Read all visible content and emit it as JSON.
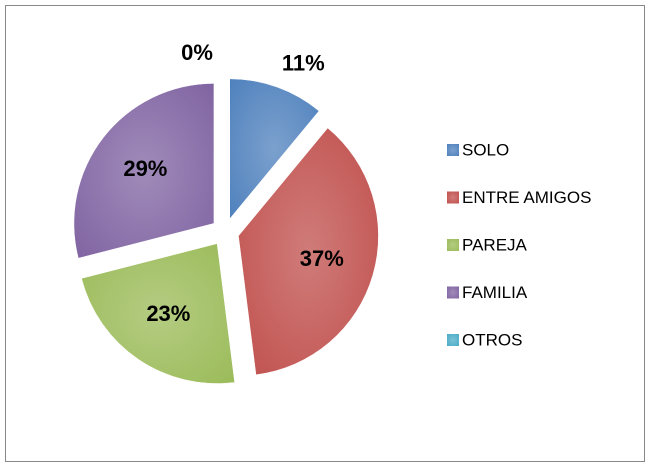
{
  "chart_data": {
    "type": "pie",
    "categories": [
      "SOLO",
      "ENTRE AMIGOS",
      "PAREJA",
      "FAMILIA",
      "OTROS"
    ],
    "values": [
      11,
      37,
      23,
      29,
      0
    ],
    "value_labels": [
      "11%",
      "37%",
      "23%",
      "29%",
      "0%"
    ],
    "colors": [
      "#4f81bd",
      "#c0504d",
      "#9bbb59",
      "#8064a2",
      "#4bacc6"
    ],
    "legend": "right"
  }
}
